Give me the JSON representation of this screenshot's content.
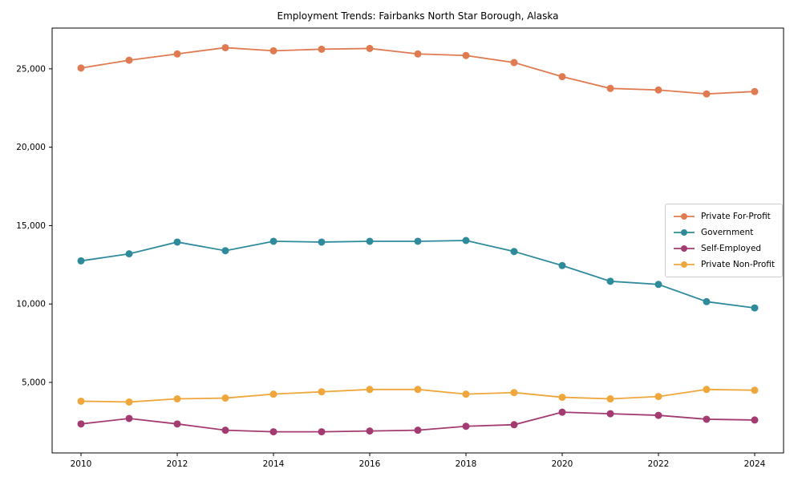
{
  "chart_data": {
    "type": "line",
    "title": "Employment Trends: Fairbanks North Star Borough, Alaska",
    "xlabel": "",
    "ylabel": "",
    "grid": false,
    "legend_position": "center right",
    "xlim": [
      2009.4,
      2024.6
    ],
    "ylim": [
      500,
      27600
    ],
    "xticks": [
      2010,
      2012,
      2014,
      2016,
      2018,
      2020,
      2022,
      2024
    ],
    "yticks": [
      5000,
      10000,
      15000,
      20000,
      25000
    ],
    "x": [
      2010,
      2011,
      2012,
      2013,
      2014,
      2015,
      2016,
      2017,
      2018,
      2019,
      2020,
      2021,
      2022,
      2023,
      2024
    ],
    "series": [
      {
        "name": "Private For-Profit",
        "color": "#e07b51",
        "values": [
          25050,
          25550,
          25950,
          26350,
          26150,
          26250,
          26300,
          25950,
          25850,
          25400,
          24500,
          23750,
          23650,
          23400,
          23550
        ]
      },
      {
        "name": "Government",
        "color": "#2e8b9c",
        "values": [
          12750,
          13200,
          13950,
          13400,
          14000,
          13950,
          14000,
          14000,
          14050,
          13350,
          12450,
          11450,
          11250,
          10150,
          9750
        ]
      },
      {
        "name": "Self-Employed",
        "color": "#a33b72",
        "values": [
          2350,
          2700,
          2350,
          1950,
          1850,
          1850,
          1900,
          1950,
          2200,
          2300,
          3100,
          3000,
          2900,
          2650,
          2600
        ]
      },
      {
        "name": "Private Non-Profit",
        "color": "#efa63b",
        "values": [
          3800,
          3750,
          3950,
          4000,
          4250,
          4400,
          4550,
          4550,
          4250,
          4350,
          4050,
          3950,
          4100,
          4550,
          4500
        ]
      }
    ]
  }
}
